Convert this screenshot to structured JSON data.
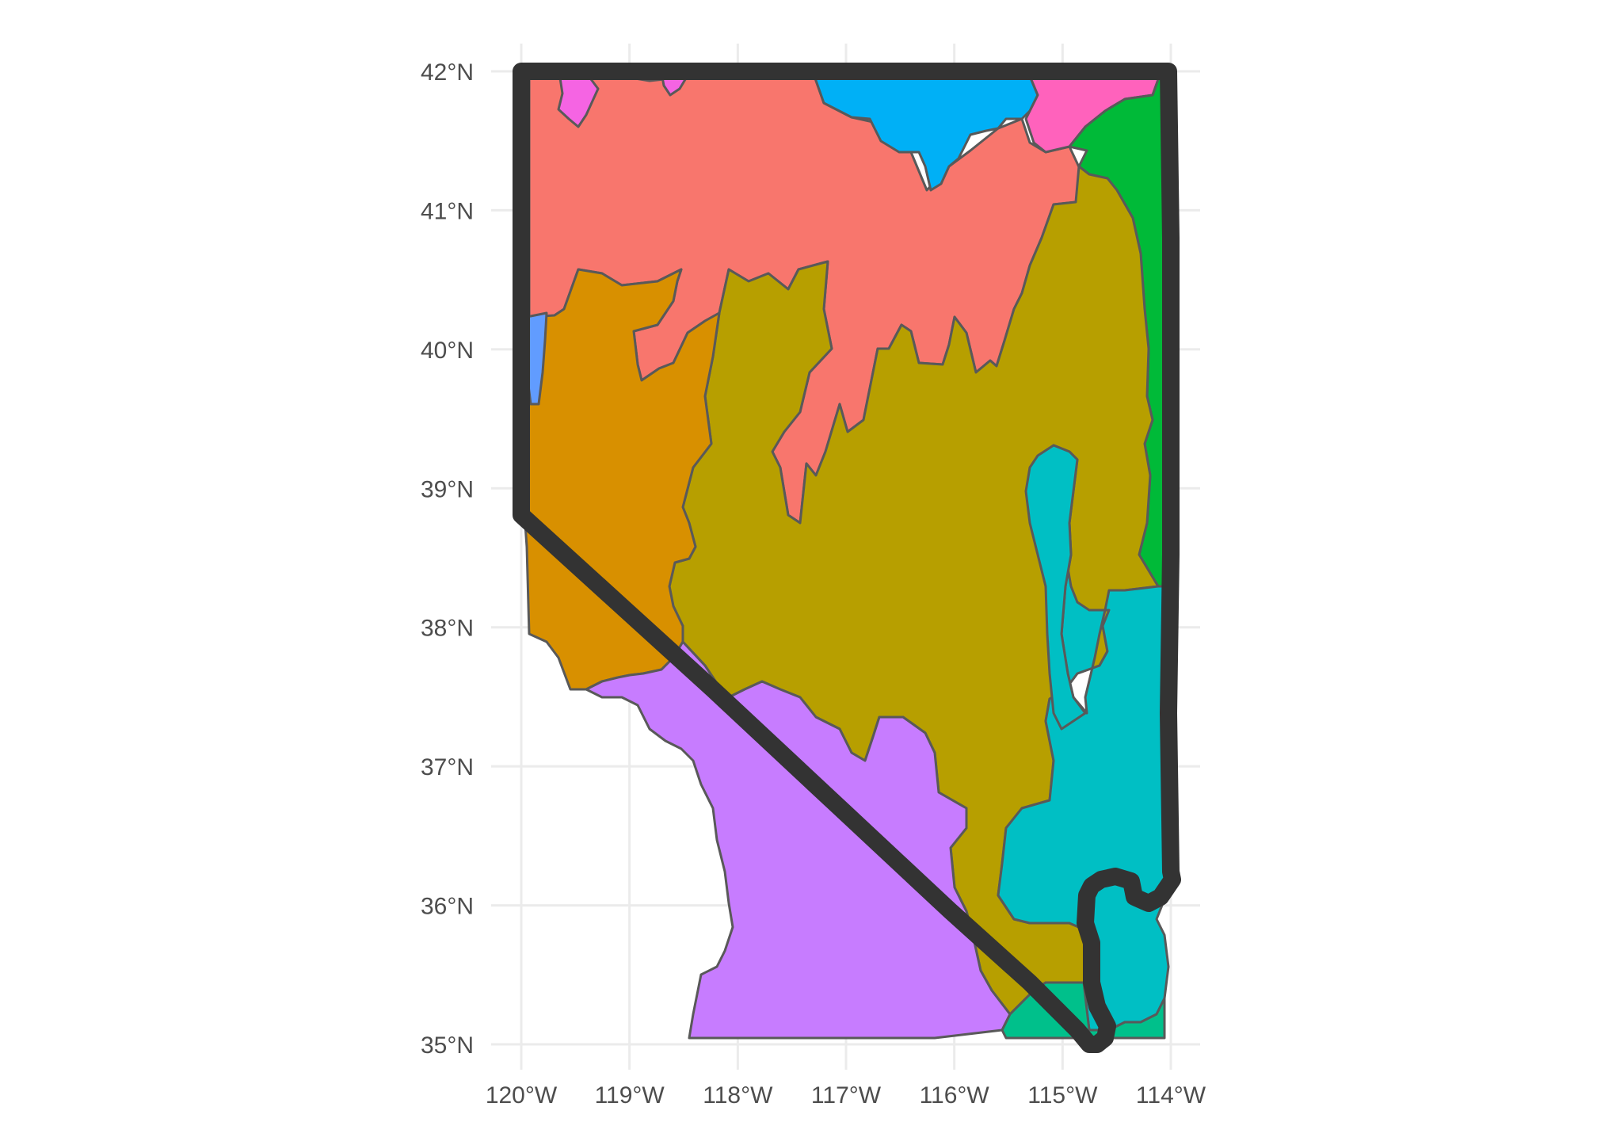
{
  "map": {
    "xlim": [
      -120,
      -114
    ],
    "ylim": [
      35,
      42
    ],
    "grid": true,
    "x_ticks": [
      {
        "value": -120,
        "label": "120°W"
      },
      {
        "value": -119,
        "label": "119°W"
      },
      {
        "value": -118,
        "label": "118°W"
      },
      {
        "value": -117,
        "label": "117°W"
      },
      {
        "value": -116,
        "label": "116°W"
      },
      {
        "value": -115,
        "label": "115°W"
      },
      {
        "value": -114,
        "label": "114°W"
      }
    ],
    "y_ticks": [
      {
        "value": 42,
        "label": "42°N"
      },
      {
        "value": 41,
        "label": "41°N"
      },
      {
        "value": 40,
        "label": "40°N"
      },
      {
        "value": 39,
        "label": "39°N"
      },
      {
        "value": 38,
        "label": "38°N"
      },
      {
        "value": 37,
        "label": "37°N"
      },
      {
        "value": 36,
        "label": "36°N"
      },
      {
        "value": 35,
        "label": "35°N"
      }
    ],
    "colors": {
      "salmon": "#F8766D",
      "orange": "#D89000",
      "olive": "#B79F00",
      "green": "#00BA38",
      "teal": "#00BFC4",
      "sky": "#00B0F6",
      "blue": "#619CFF",
      "purple": "#C77CFF",
      "pink": "#FF62BC",
      "magenta": "#F564E3",
      "jade": "#00C08B",
      "border": "#333333"
    }
  }
}
